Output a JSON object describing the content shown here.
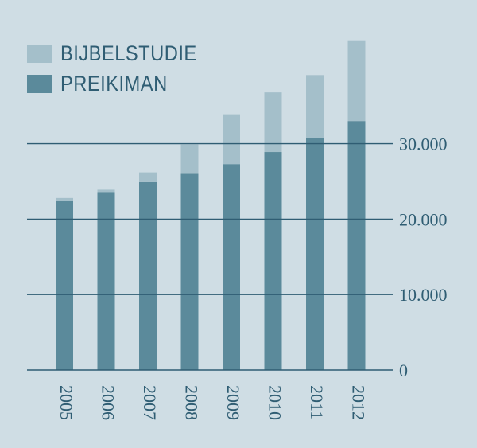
{
  "chart_data": {
    "type": "bar",
    "stacked": true,
    "categories": [
      "2005",
      "2006",
      "2007",
      "2008",
      "2009",
      "2010",
      "2011",
      "2012"
    ],
    "series": [
      {
        "name": "PREIKIMAN",
        "color": "#5b8a9b",
        "values": [
          22400,
          23600,
          24900,
          26000,
          27300,
          28900,
          30700,
          33000
        ]
      },
      {
        "name": "BIJBELSTUDIE",
        "color": "#a4bfca",
        "values": [
          400,
          300,
          1300,
          3900,
          6600,
          7900,
          8400,
          10700
        ]
      }
    ],
    "yticks": [
      {
        "value": 0,
        "label": "0"
      },
      {
        "value": 10000,
        "label": "10.000"
      },
      {
        "value": 20000,
        "label": "20.000"
      },
      {
        "value": 30000,
        "label": "30.000"
      }
    ],
    "ylim": [
      0,
      44000
    ],
    "grid": true,
    "axis_side": "right",
    "legend_position": "top-left",
    "xlabel_orientation": "vertical"
  },
  "legend": [
    {
      "label": "BIJBELSTUDIE",
      "color": "#a4bfca"
    },
    {
      "label": "PREIKIMAN",
      "color": "#5b8a9b"
    }
  ]
}
